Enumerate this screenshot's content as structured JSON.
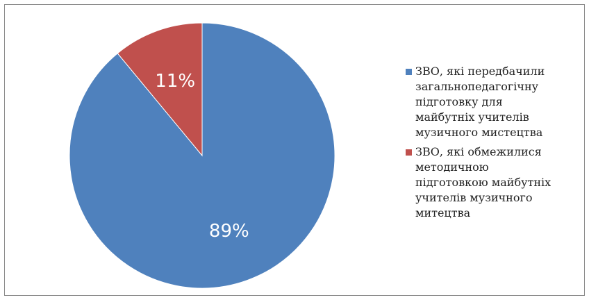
{
  "chart_data": {
    "type": "pie",
    "title": "",
    "slices": [
      {
        "label_lines": [
          "ЗВО, які передбачили",
          "загальнопедагогічну",
          "підготовку для",
          "майбутніх учителів",
          "музичного мистецтва"
        ],
        "value": 89,
        "display": "89%",
        "color": "#4f81bd"
      },
      {
        "label_lines": [
          "ЗВО, які обмежилися",
          "методичною",
          "підготовкою майбутніх",
          "учителів музичного",
          "митецтва"
        ],
        "value": 11,
        "display": "11%",
        "color": "#c0504d"
      }
    ],
    "legend_position": "right"
  }
}
